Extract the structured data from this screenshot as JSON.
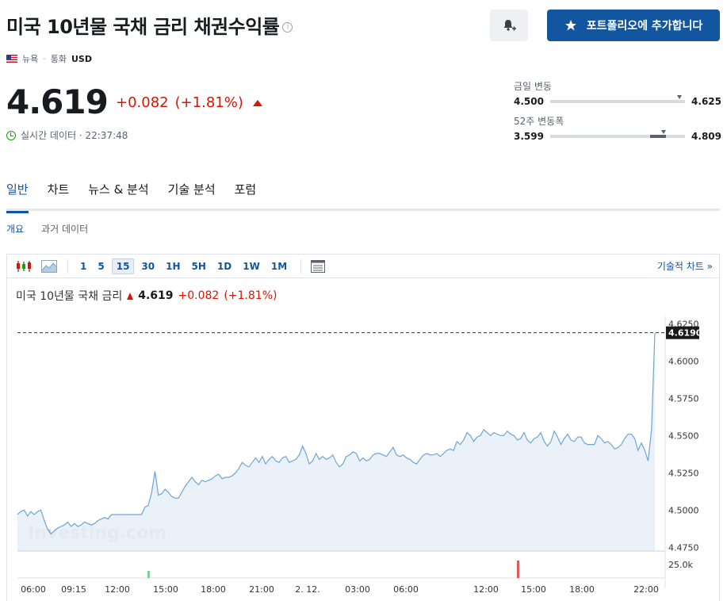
{
  "header": {
    "title": "미국 10년물 국채 금리 채권수익률",
    "add_portfolio_label": "포트폴리오에 추가합니다"
  },
  "meta": {
    "location": "뉴욕",
    "currency_label": "통화",
    "currency": "USD"
  },
  "quote": {
    "price": "4.619",
    "change": "+0.082",
    "change_pct": "(+1.81%)",
    "realtime_label": "실시간 데이터 · 22:37:48"
  },
  "ranges": {
    "day": {
      "label": "금일 변동",
      "low": "4.500",
      "high": "4.625",
      "marker": 0.96
    },
    "week52": {
      "label": "52주 변동폭",
      "low": "3.599",
      "high": "4.809",
      "marker": 1.0
    }
  },
  "tabs": [
    {
      "label": "일반",
      "active": true
    },
    {
      "label": "차트",
      "active": false
    },
    {
      "label": "뉴스 & 분석",
      "active": false
    },
    {
      "label": "기술 분석",
      "active": false
    },
    {
      "label": "포럼",
      "active": false
    }
  ],
  "subtabs": [
    {
      "label": "개요",
      "active": true
    },
    {
      "label": "과거 데이터",
      "active": false
    }
  ],
  "toolbar": {
    "intervals": [
      "1",
      "5",
      "15",
      "30",
      "1H",
      "5H",
      "1D",
      "1W",
      "1M"
    ],
    "selected": "15",
    "tech_chart_label": "기술적 차트 »"
  },
  "chart_head": {
    "name": "미국 10년물 국채 금리",
    "price": "4.619",
    "change": "+0.082",
    "change_pct": "(+1.81%)"
  },
  "colors": {
    "accent": "#1256a0",
    "down_red": "#d91400",
    "line": "#6fa5d4",
    "area": "#e6eef7"
  },
  "chart_data": {
    "type": "area",
    "watermark": "Investing.com",
    "last_value_label": "4.6190",
    "ylim": [
      4.4725,
      4.63
    ],
    "yticks": [
      "4.6250",
      "4.6000",
      "4.5750",
      "4.5500",
      "4.5250",
      "4.5000",
      "4.4750"
    ],
    "ytick_values": [
      4.625,
      4.6,
      4.575,
      4.55,
      4.525,
      4.5,
      4.475
    ],
    "xticks": [
      "06:00",
      "09:15",
      "12:00",
      "15:00",
      "18:00",
      "21:00",
      "2. 12.",
      "03:00",
      "06:00",
      "12:00",
      "15:00",
      "18:00",
      "22:00"
    ],
    "volume_label": "25.0k",
    "series": [
      {
        "values": [
          4.497,
          4.499,
          4.5,
          4.496,
          4.499,
          4.497,
          4.499,
          4.5,
          4.493,
          4.487,
          4.484,
          4.486,
          4.488,
          4.489,
          4.49,
          4.492,
          4.489,
          4.491,
          4.489,
          4.49,
          4.492,
          4.491,
          4.49,
          4.491,
          4.493,
          4.494,
          4.495,
          4.494,
          4.497,
          4.497,
          4.497,
          4.497,
          4.497,
          4.497,
          4.497,
          4.497,
          4.497,
          4.497,
          4.502,
          4.503,
          4.512,
          4.526,
          4.51,
          4.511,
          4.514,
          4.512,
          4.509,
          4.508,
          4.508,
          4.512,
          4.516,
          4.519,
          4.522,
          4.519,
          4.517,
          4.52,
          4.519,
          4.52,
          4.521,
          4.523,
          4.524,
          4.521,
          4.522,
          4.522,
          4.523,
          4.525,
          4.528,
          4.532,
          4.53,
          4.529,
          4.532,
          4.535,
          4.532,
          4.536,
          4.531,
          4.534,
          4.536,
          4.533,
          4.532,
          4.535,
          4.536,
          4.532,
          4.533,
          4.534,
          4.537,
          4.543,
          4.538,
          4.531,
          4.533,
          4.538,
          4.534,
          4.536,
          4.534,
          4.535,
          4.537,
          4.532,
          4.529,
          4.531,
          4.536,
          4.537,
          4.539,
          4.538,
          4.533,
          4.535,
          4.533,
          4.534,
          4.537,
          4.538,
          4.538,
          4.537,
          4.536,
          4.539,
          4.542,
          4.537,
          4.536,
          4.537,
          4.535,
          4.534,
          4.532,
          4.531,
          4.534,
          4.537,
          4.538,
          4.537,
          4.537,
          4.538,
          4.536,
          4.538,
          4.54,
          4.541,
          4.54,
          4.546,
          4.544,
          4.547,
          4.552,
          4.55,
          4.546,
          4.549,
          4.55,
          4.554,
          4.552,
          4.55,
          4.552,
          4.551,
          4.55,
          4.55,
          4.553,
          4.551,
          4.55,
          4.547,
          4.548,
          4.552,
          4.547,
          4.545,
          4.548,
          4.549,
          4.552,
          4.546,
          4.543,
          4.546,
          4.553,
          4.549,
          4.544,
          4.548,
          4.551,
          4.547,
          4.546,
          4.549,
          4.549,
          4.545,
          4.544,
          4.544,
          4.544,
          4.55,
          4.548,
          4.545,
          4.546,
          4.544,
          4.541,
          4.542,
          4.544,
          4.548,
          4.551,
          4.551,
          4.548,
          4.54,
          4.545,
          4.54,
          4.533,
          4.554,
          4.619
        ]
      }
    ]
  }
}
